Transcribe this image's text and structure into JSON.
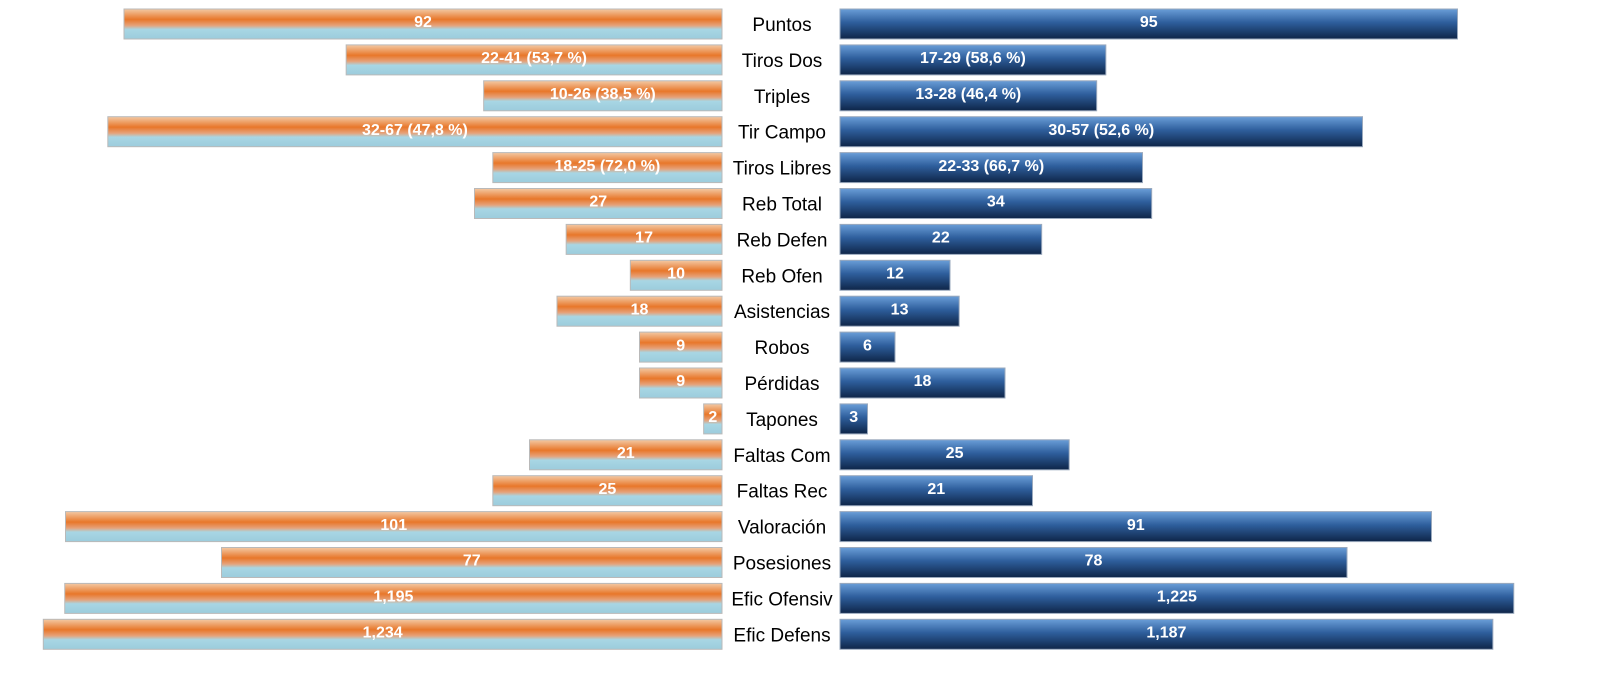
{
  "chart_data": {
    "type": "bar",
    "orientation": "horizontal-back-to-back",
    "categories": [
      "Puntos",
      "Tiros Dos",
      "Triples",
      "Tir Campo",
      "Tiros Libres",
      "Reb Total",
      "Reb Defen",
      "Reb Ofen",
      "Asistencias",
      "Robos",
      "Pérdidas",
      "Tapones",
      "Faltas Com",
      "Faltas Rec",
      "Valoración",
      "Posesiones",
      "Efic Ofensiv",
      "Efic Defens"
    ],
    "series": [
      {
        "side": "left",
        "color_top": "#e8772a",
        "color_bottom": "#a8d6e4",
        "values": [
          92,
          41,
          26,
          67,
          25,
          27,
          17,
          10,
          18,
          9,
          9,
          2,
          21,
          25,
          101,
          77,
          1195,
          1234
        ],
        "labels": [
          "92",
          "22-41 (53,7 %)",
          "10-26 (38,5 %)",
          "32-67 (47,8 %)",
          "18-25 (72,0 %)",
          "27",
          "17",
          "10",
          "18",
          "9",
          "9",
          "2",
          "21",
          "25",
          "101",
          "77",
          "1,195",
          "1,234"
        ]
      },
      {
        "side": "right",
        "color_top": "#5a90d0",
        "color_bottom": "#0f2a52",
        "values": [
          95,
          29,
          28,
          57,
          33,
          34,
          22,
          12,
          13,
          6,
          18,
          3,
          25,
          21,
          91,
          78,
          1225,
          1187
        ],
        "labels": [
          "95",
          "17-29 (58,6 %)",
          "13-28 (46,4 %)",
          "30-57 (52,6 %)",
          "22-33 (66,7 %)",
          "34",
          "22",
          "12",
          "13",
          "6",
          "18",
          "3",
          "25",
          "21",
          "91",
          "78",
          "1,225",
          "1,187"
        ]
      }
    ],
    "scale_groups": [
      {
        "rows": [
          0,
          14,
          15
        ],
        "max": 110
      },
      {
        "rows": [
          1,
          2,
          3,
          4,
          5,
          6,
          7,
          8,
          9,
          10,
          11,
          12,
          13
        ],
        "max": 78
      },
      {
        "rows": [
          16,
          17
        ],
        "max": 1300
      }
    ],
    "grid": false,
    "legend": "none"
  }
}
